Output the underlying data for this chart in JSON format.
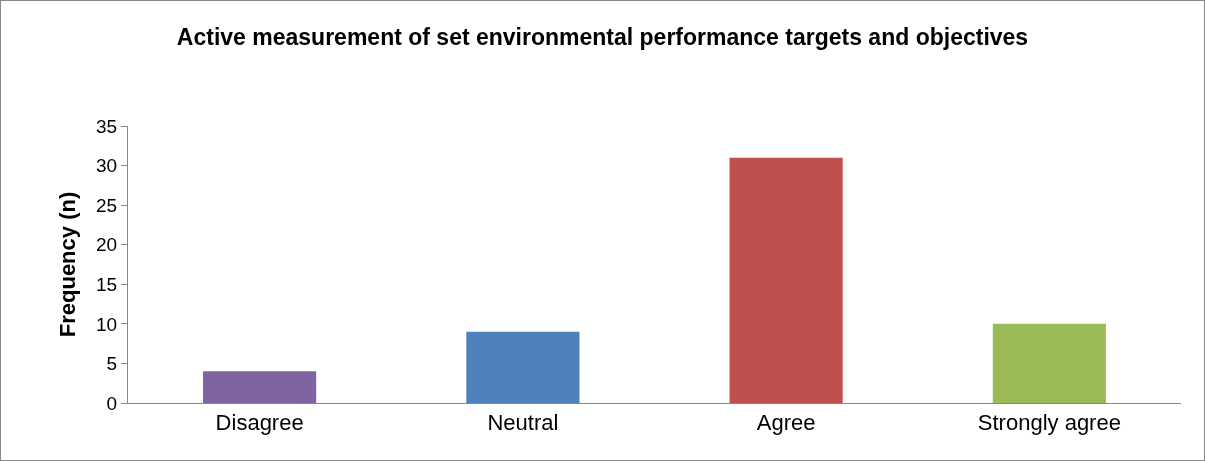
{
  "chart_data": {
    "type": "bar",
    "title": "Active measurement of set environmental performance targets and objectives",
    "ylabel": "Frequency (n)",
    "categories": [
      "Disagree",
      "Neutral",
      "Agree",
      "Strongly agree"
    ],
    "values": [
      4,
      9,
      31,
      10
    ],
    "colors": [
      "#8064a2",
      "#4f81bd",
      "#c0504d",
      "#9bbb59"
    ],
    "ylim": [
      0,
      35
    ],
    "yticks": [
      0,
      5,
      10,
      15,
      20,
      25,
      30,
      35
    ],
    "grid": false,
    "legend": false
  }
}
